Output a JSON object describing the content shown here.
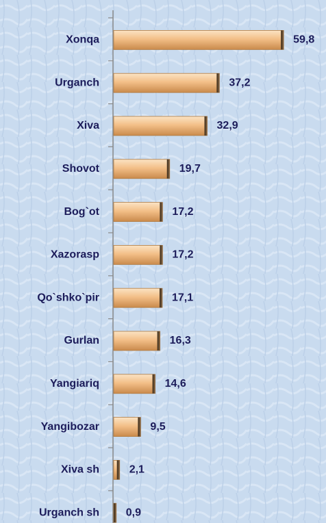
{
  "chart_data": {
    "type": "bar",
    "orientation": "horizontal",
    "categories": [
      "Xonqa",
      "Urganch",
      "Xiva",
      "Shovot",
      "Bog`ot",
      "Xazorasp",
      "Qo`shko`pir",
      "Gurlan",
      "Yangiariq",
      "Yangibozar",
      "Xiva sh",
      "Urganch sh"
    ],
    "values": [
      59.8,
      37.2,
      32.9,
      19.7,
      17.2,
      17.2,
      17.1,
      16.3,
      14.6,
      9.5,
      2.1,
      0.9
    ],
    "value_labels": [
      "59,8",
      "37,2",
      "32,9",
      "19,7",
      "17,2",
      "17,2",
      "17,1",
      "16,3",
      "14,6",
      "9,5",
      "2,1",
      "0,9"
    ],
    "color": "#f0b880",
    "xlim": [
      0,
      60
    ]
  }
}
